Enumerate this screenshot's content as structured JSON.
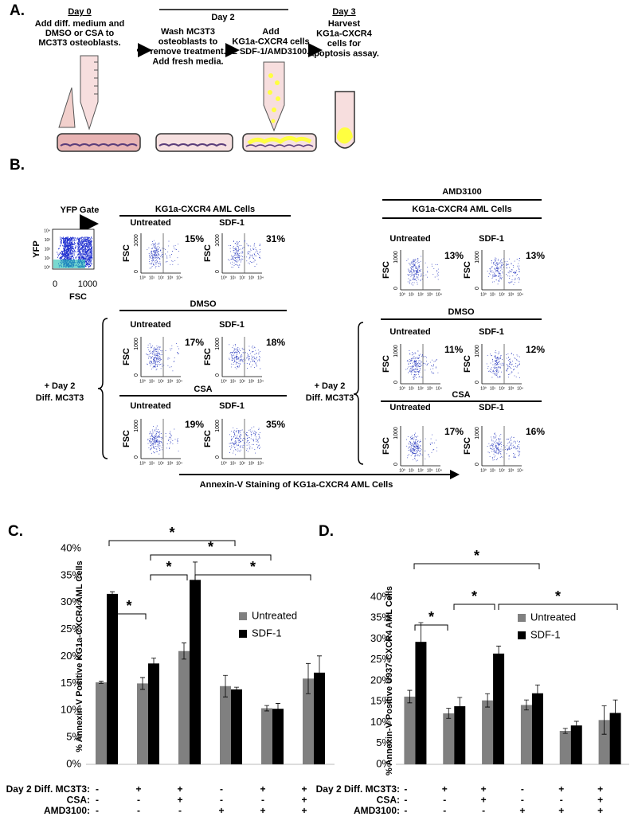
{
  "panel_a": {
    "label": "A.",
    "day0": {
      "title": "Day 0",
      "lines": [
        "Add diff. medium and",
        "DMSO or CSA to",
        "MC3T3 osteoblasts."
      ]
    },
    "day2": {
      "title": "Day 2",
      "wash": [
        "Wash MC3T3",
        "osteoblasts to",
        "remove treatment.",
        "Add fresh media."
      ],
      "add": [
        "Add",
        "KG1a-CXCR4 cells",
        "± SDF-1/AMD3100."
      ]
    },
    "day3": {
      "title": "Day 3",
      "lines": [
        "Harvest",
        "KG1a-CXCR4",
        "cells for",
        "apoptosis assay."
      ]
    }
  },
  "panel_b": {
    "label": "B.",
    "yfp_gate": {
      "title": "YFP Gate",
      "ylabel": "YFP",
      "xlabel": "FSC",
      "xticks": [
        "0",
        "1000"
      ],
      "yticks": [
        "10⁰",
        "10¹",
        "10²",
        "10³",
        "10⁴"
      ]
    },
    "flow_axes": {
      "ylabel": "FSC",
      "yticks": [
        "0",
        "1000"
      ],
      "xticks": [
        "10⁰",
        "10¹",
        "10²",
        "10³",
        "10⁴"
      ]
    },
    "groups": [
      {
        "headers": [
          "KG1a-CXCR4 AML Cells"
        ],
        "plots": [
          {
            "title": "Untreated",
            "percent": "15%"
          },
          {
            "title": "SDF-1",
            "percent": "31%"
          }
        ]
      },
      {
        "headers": [
          "AMD3100",
          "KG1a-CXCR4 AML Cells"
        ],
        "plots": [
          {
            "title": "Untreated",
            "percent": "13%"
          },
          {
            "title": "SDF-1",
            "percent": "13%"
          }
        ]
      },
      {
        "headers": [
          "DMSO"
        ],
        "plots": [
          {
            "title": "Untreated",
            "percent": "17%"
          },
          {
            "title": "SDF-1",
            "percent": "18%"
          }
        ]
      },
      {
        "headers": [
          "CSA"
        ],
        "plots": [
          {
            "title": "Untreated",
            "percent": "19%"
          },
          {
            "title": "SDF-1",
            "percent": "35%"
          }
        ]
      },
      {
        "headers": [
          "DMSO"
        ],
        "plots": [
          {
            "title": "Untreated",
            "percent": "11%"
          },
          {
            "title": "SDF-1",
            "percent": "12%"
          }
        ]
      },
      {
        "headers": [
          "CSA"
        ],
        "plots": [
          {
            "title": "Untreated",
            "percent": "17%"
          },
          {
            "title": "SDF-1",
            "percent": "16%"
          }
        ]
      }
    ],
    "side_label": [
      "+ Day 2",
      "Diff. MC3T3"
    ],
    "arrow_label": "Annexin-V Staining of KG1a-CXCR4 AML Cells"
  },
  "chart_data": [
    {
      "type": "bar",
      "panel_label": "C.",
      "ylabel": "% Annexin-V Positive KG1a-CXCR4 AML Cells",
      "ylim": [
        0,
        40
      ],
      "yticks": [
        {
          "value": 0,
          "label": "0%"
        },
        {
          "value": 5,
          "label": "5%"
        },
        {
          "value": 10,
          "label": "10%"
        },
        {
          "value": 15,
          "label": "15%"
        },
        {
          "value": 20,
          "label": "20%"
        },
        {
          "value": 25,
          "label": "25%"
        },
        {
          "value": 30,
          "label": "30%"
        },
        {
          "value": 35,
          "label": "35%"
        },
        {
          "value": 40,
          "label": "40%"
        }
      ],
      "series": [
        {
          "name": "Untreated",
          "color": "#808080",
          "values": [
            15.2,
            15.0,
            21.0,
            14.5,
            10.4,
            15.9
          ],
          "errors": [
            0.2,
            1.1,
            1.5,
            2.0,
            0.5,
            2.8
          ]
        },
        {
          "name": "SDF-1",
          "color": "#000000",
          "values": [
            31.6,
            18.7,
            34.2,
            13.9,
            10.3,
            17.0
          ],
          "errors": [
            0.4,
            1.0,
            3.3,
            0.4,
            1.0,
            3.1
          ]
        }
      ],
      "conditions": [
        {
          "label": "Day 2 Diff. MC3T3:",
          "values": [
            "-",
            "+",
            "+",
            "-",
            "+",
            "+"
          ]
        },
        {
          "label": "CSA:",
          "values": [
            "-",
            "-",
            "+",
            "-",
            "-",
            "+"
          ]
        },
        {
          "label": "AMD3100:",
          "values": [
            "-",
            "-",
            "-",
            "+",
            "+",
            "+"
          ]
        }
      ],
      "annotations": [
        "*",
        "*",
        "*",
        "*",
        "*"
      ]
    },
    {
      "type": "bar",
      "panel_label": "D.",
      "ylabel": "% Annexin-V Positive U937-CXCR4 AML Cells",
      "ylim": [
        0,
        40
      ],
      "yticks": [
        {
          "value": 0,
          "label": "0%"
        },
        {
          "value": 5,
          "label": "5%"
        },
        {
          "value": 10,
          "label": "10%"
        },
        {
          "value": 15,
          "label": "15%"
        },
        {
          "value": 20,
          "label": "20%"
        },
        {
          "value": 25,
          "label": "25%"
        },
        {
          "value": 30,
          "label": "30%"
        },
        {
          "value": 35,
          "label": "35%"
        },
        {
          "value": 40,
          "label": "40%"
        }
      ],
      "series": [
        {
          "name": "Untreated",
          "color": "#808080",
          "values": [
            16.2,
            12.2,
            15.3,
            14.2,
            8.0,
            10.6
          ],
          "errors": [
            1.5,
            1.2,
            1.6,
            1.2,
            0.6,
            3.4
          ]
        },
        {
          "name": "SDF-1",
          "color": "#000000",
          "values": [
            29.3,
            13.9,
            26.5,
            17.0,
            9.3,
            12.3
          ],
          "errors": [
            4.6,
            2.1,
            1.8,
            2.0,
            1.0,
            3.1
          ]
        }
      ],
      "conditions": [
        {
          "label": "Day 2 Diff. MC3T3:",
          "values": [
            "-",
            "+",
            "+",
            "-",
            "+",
            "+"
          ]
        },
        {
          "label": "CSA:",
          "values": [
            "-",
            "-",
            "+",
            "-",
            "-",
            "+"
          ]
        },
        {
          "label": "AMD3100:",
          "values": [
            "-",
            "-",
            "-",
            "+",
            "+",
            "+"
          ]
        }
      ],
      "annotations": [
        "*",
        "*",
        "*",
        "*"
      ]
    }
  ]
}
